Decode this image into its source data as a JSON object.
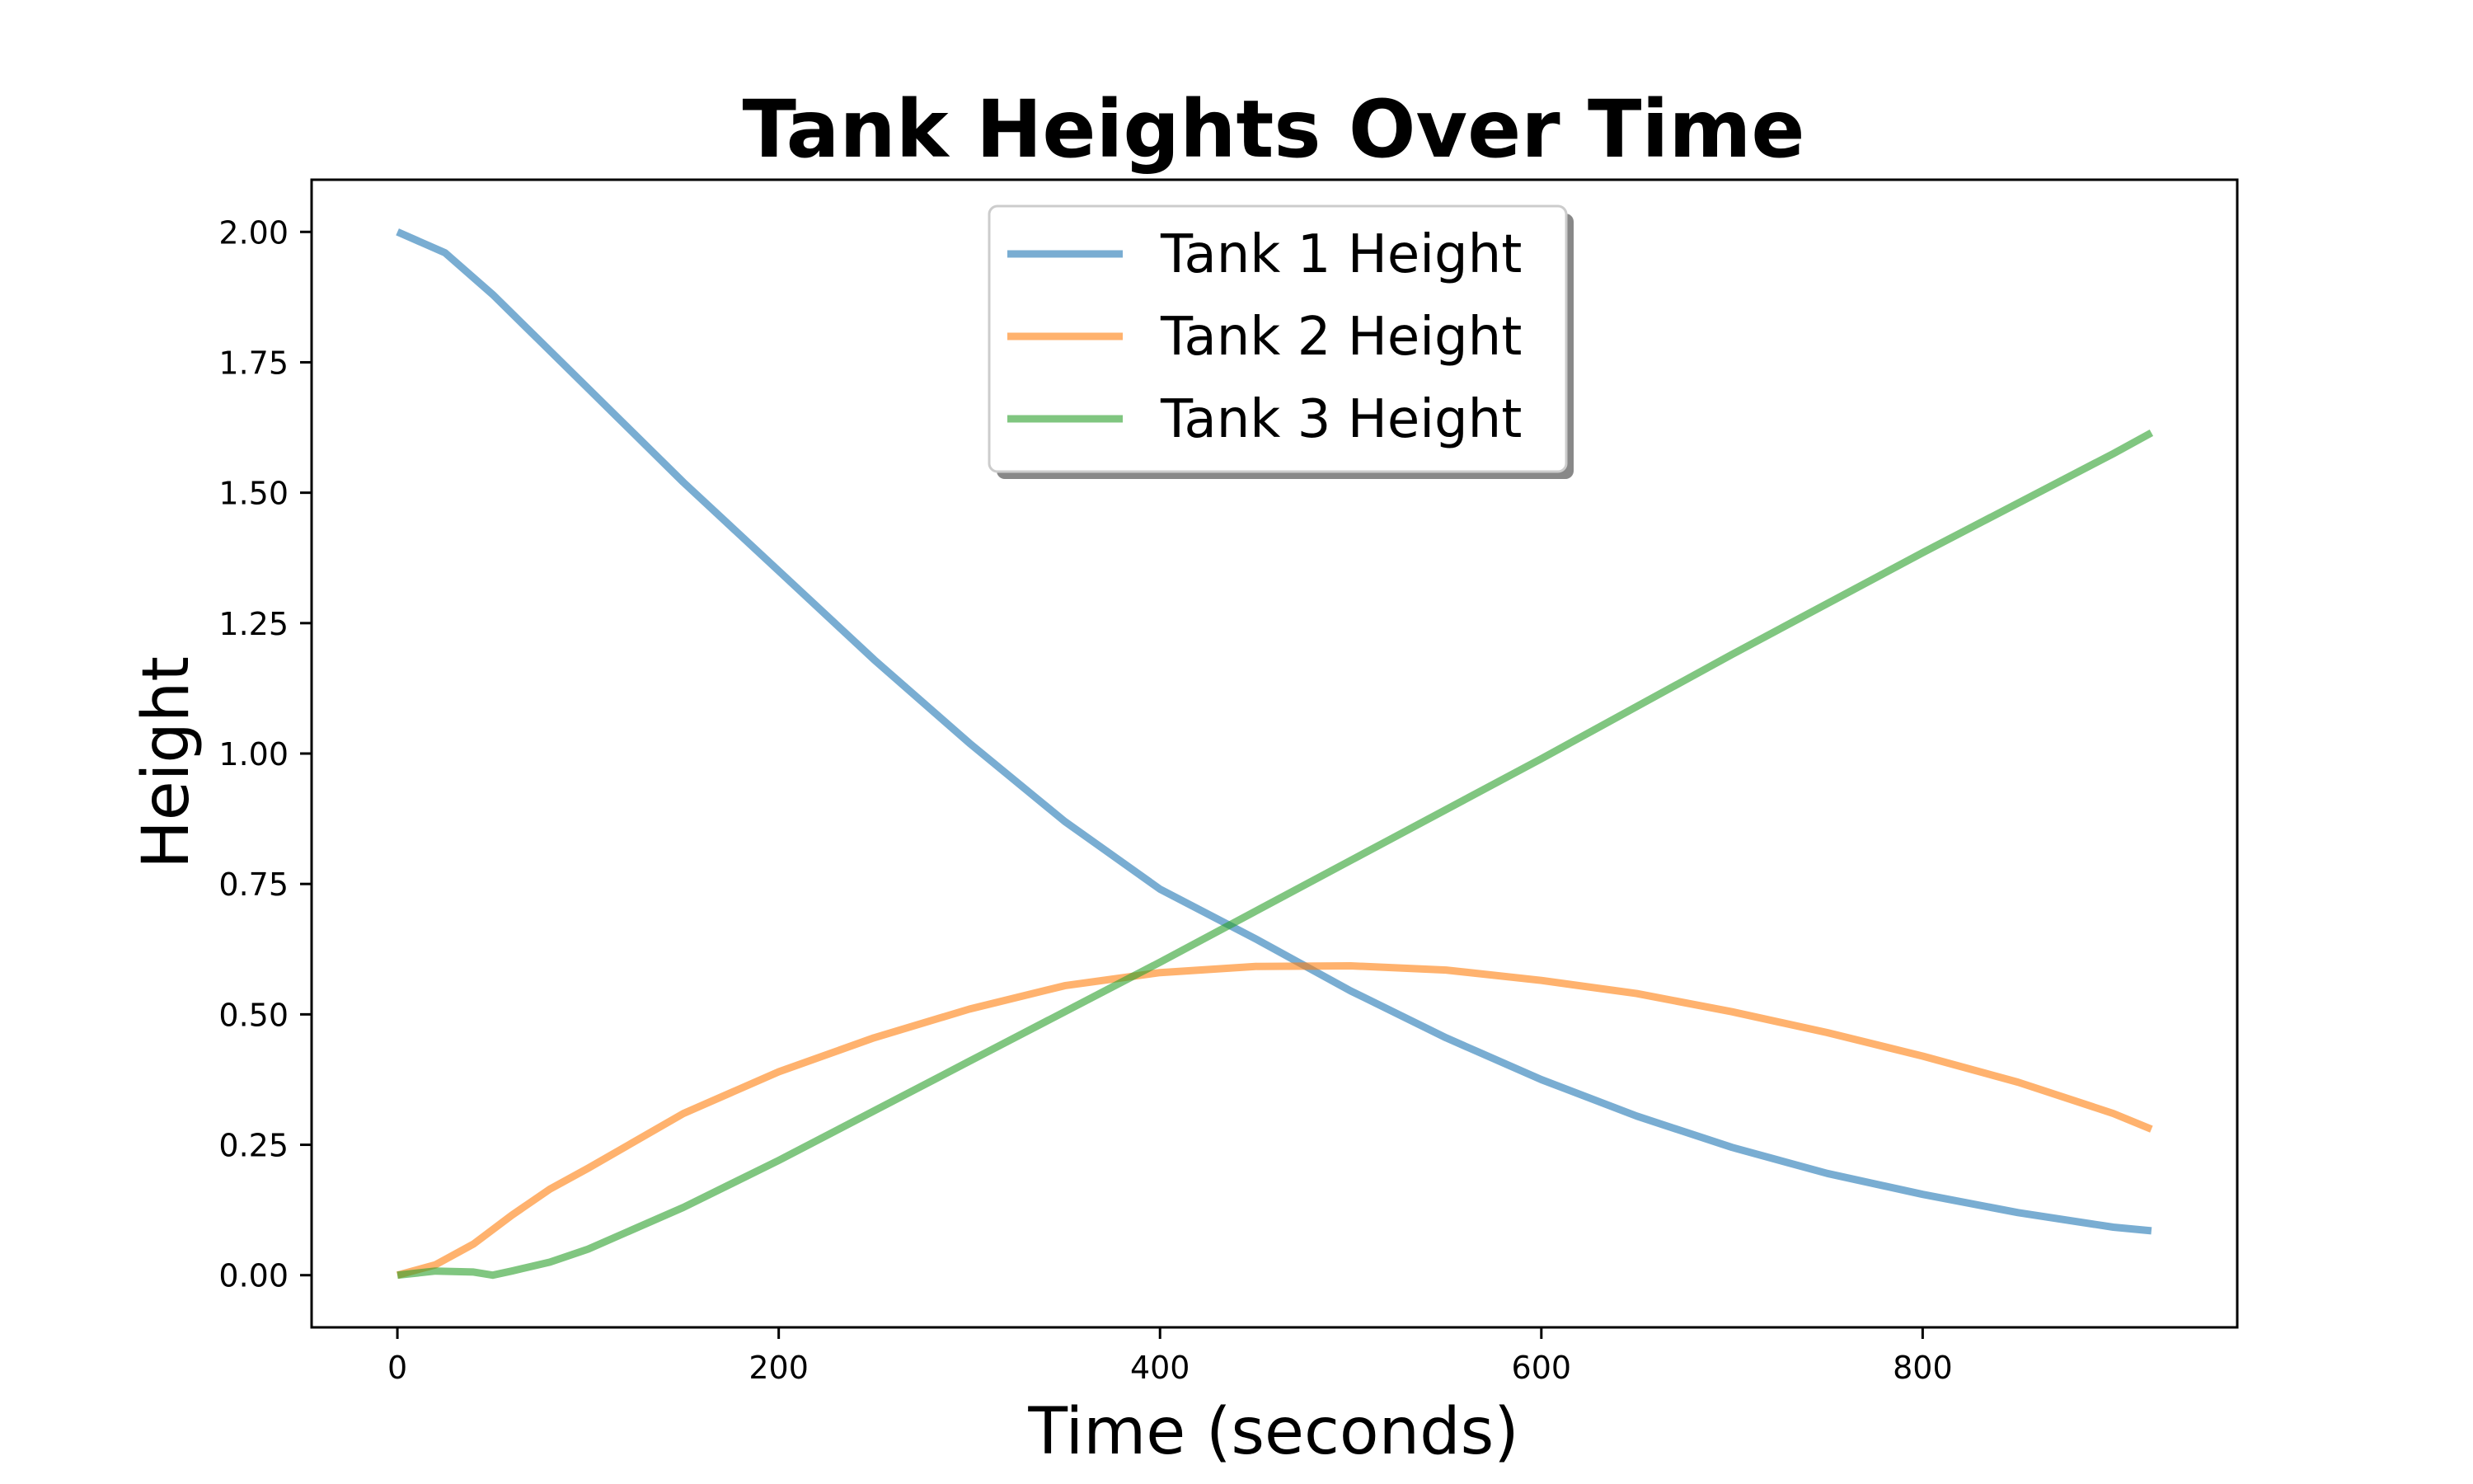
{
  "chart_data": {
    "type": "line",
    "title": "Tank Heights Over Time",
    "xlabel": "Time (seconds)",
    "ylabel": "Height",
    "xlim": [
      -45,
      965
    ],
    "ylim": [
      -0.1,
      2.1
    ],
    "xticks": [
      0,
      200,
      400,
      600,
      800
    ],
    "xtick_labels": [
      "0",
      "200",
      "400",
      "600",
      "800"
    ],
    "yticks": [
      0,
      0.25,
      0.5,
      0.75,
      1.0,
      1.25,
      1.5,
      1.75,
      2.0
    ],
    "ytick_labels": [
      "0.00",
      "0.25",
      "0.50",
      "0.75",
      "1.00",
      "1.25",
      "1.50",
      "1.75",
      "2.00"
    ],
    "grid": false,
    "legend_position": "upper-center",
    "series": [
      {
        "name": "Tank 1 Height",
        "color": "#1f77b4",
        "x": [
          0,
          25,
          50,
          75,
          100,
          150,
          200,
          250,
          300,
          350,
          400,
          450,
          500,
          550,
          600,
          650,
          700,
          750,
          800,
          850,
          900,
          920
        ],
        "y": [
          2.0,
          1.96,
          1.88,
          1.79,
          1.7,
          1.52,
          1.35,
          1.18,
          1.02,
          0.87,
          0.74,
          0.645,
          0.545,
          0.455,
          0.375,
          0.305,
          0.245,
          0.195,
          0.155,
          0.12,
          0.092,
          0.085
        ]
      },
      {
        "name": "Tank 2 Height",
        "color": "#ff7f0e",
        "x": [
          0,
          20,
          40,
          60,
          80,
          100,
          150,
          200,
          250,
          300,
          350,
          400,
          450,
          500,
          550,
          600,
          650,
          700,
          750,
          800,
          850,
          900,
          920
        ],
        "y": [
          0.0,
          0.02,
          0.06,
          0.115,
          0.165,
          0.205,
          0.31,
          0.39,
          0.455,
          0.51,
          0.555,
          0.58,
          0.592,
          0.593,
          0.585,
          0.565,
          0.54,
          0.505,
          0.465,
          0.42,
          0.37,
          0.31,
          0.28
        ]
      },
      {
        "name": "Tank 3 Height",
        "color": "#2ca02c",
        "x": [
          0,
          20,
          40,
          50,
          60,
          80,
          100,
          150,
          200,
          300,
          400,
          500,
          600,
          700,
          800,
          900,
          920
        ],
        "y": [
          0.0,
          0.008,
          0.006,
          0.0,
          0.008,
          0.025,
          0.05,
          0.13,
          0.22,
          0.41,
          0.6,
          0.795,
          0.99,
          1.19,
          1.385,
          1.575,
          1.615
        ]
      }
    ]
  }
}
